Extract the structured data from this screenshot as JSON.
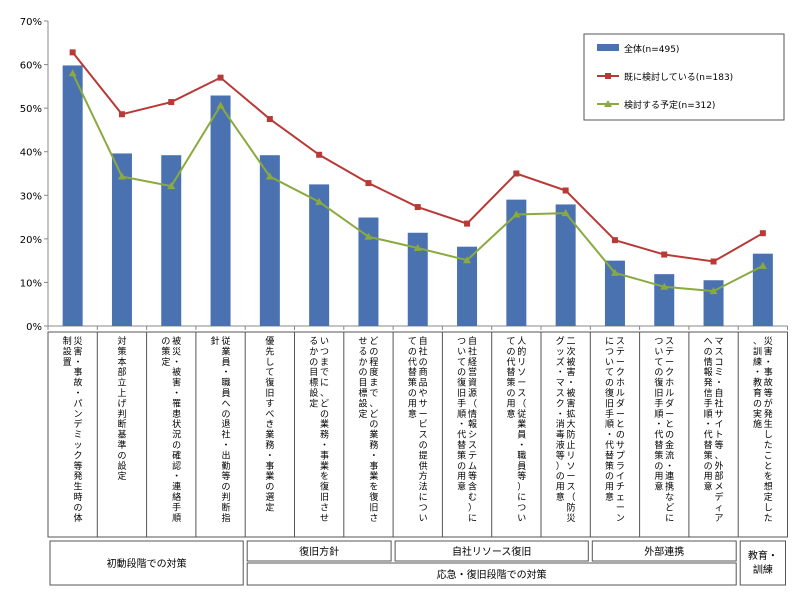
{
  "chart_data": {
    "type": "bar",
    "ylim": [
      0,
      70
    ],
    "y_ticks": [
      "0%",
      "10%",
      "20%",
      "30%",
      "40%",
      "50%",
      "60%",
      "70%"
    ],
    "grid": false,
    "legend_position": "top-right",
    "categories": [
      "災害・事故・パンデミック等発生時の体制設置",
      "対策本部立上げ判断基準の設定",
      "被災・被害・罹患状況の確認・連絡手順の策定",
      "従業員・職員への退社・出勤等の判断指針",
      "優先して復旧すべき業務・事業の選定",
      "いつまでに、どの業務・事業を復旧させるかの目標設定",
      "どの程度まで、どの業務・事業を復旧させるかの目標設定",
      "自社の商品やサービスの提供方法についての代替策の用意",
      "自社経営資源（情報システム等含む）についての復旧手順・代替策の用意",
      "人的リソース（従業員・職員等）についての代替策の用意",
      "二次被害・被害拡大防止リソース（防災グッズ・マスク・消毒液等）の用意",
      "ステークホルダーとのサプライチェーンについての復旧手順・代替策の用意",
      "ステークホルダーとの金流・連携などについての復旧手順・代替策の用意",
      "マスコミ・自社サイト等、外部メディアへの情報発信手順・代替策の用意",
      "災害・事故等が発生したことを想定した、訓練・教育の実施"
    ],
    "series": [
      {
        "name": "全体(n=495)",
        "type": "bar",
        "color": "#4a72b0",
        "values": [
          59.8,
          39.6,
          39.2,
          52.9,
          39.2,
          32.5,
          24.9,
          21.4,
          18.2,
          29.0,
          27.9,
          15.0,
          11.9,
          10.5,
          16.6
        ]
      },
      {
        "name": "既に検討している(n=183)",
        "type": "line",
        "color": "#b83a37",
        "marker": "square",
        "values": [
          62.8,
          48.6,
          51.4,
          57.0,
          47.5,
          39.3,
          32.8,
          27.3,
          23.5,
          35.0,
          31.1,
          19.7,
          16.4,
          14.8,
          21.3
        ]
      },
      {
        "name": "検討する予定(n=312)",
        "type": "line",
        "color": "#8aaa3f",
        "marker": "triangle",
        "values": [
          58.0,
          34.3,
          32.1,
          50.6,
          34.3,
          28.5,
          20.5,
          17.9,
          15.1,
          25.6,
          25.9,
          12.2,
          9.0,
          8.0,
          13.8
        ]
      }
    ],
    "groups": [
      {
        "label": "初動段階での対策",
        "start": 0,
        "end": 3
      },
      {
        "label": "復旧方針",
        "start": 4,
        "end": 6
      },
      {
        "label": "自社リソース復旧",
        "start": 7,
        "end": 10
      },
      {
        "label": "外部連携",
        "start": 11,
        "end": 13
      },
      {
        "label": "教育・訓練",
        "start": 14,
        "end": 14
      },
      {
        "label": "応急・復旧段階での対策",
        "start": 4,
        "end": 13
      }
    ]
  }
}
